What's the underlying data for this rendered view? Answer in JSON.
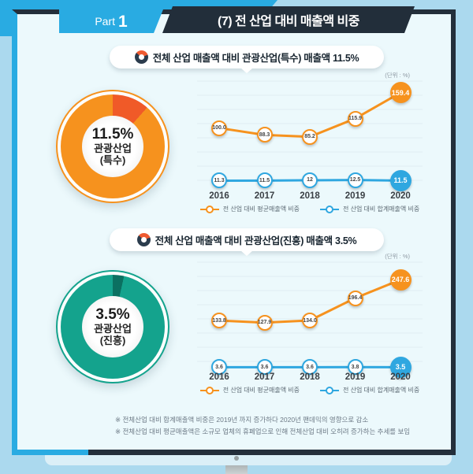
{
  "header": {
    "part_label": "Part",
    "part_number": "1",
    "title": "(7) 전 산업 대비 매출액 비중"
  },
  "colors": {
    "accent_blue": "#29abe2",
    "navy": "#222e3a",
    "orange": "#f6921e",
    "orange_slice": "#f05a28",
    "teal": "#14a38d",
    "teal_slice": "#0b7061",
    "line_blue": "#2fa7e0"
  },
  "sections": [
    {
      "title": "전체 산업 매출액 대비 관광산업(특수) 매출액 11.5%",
      "donut": {
        "percent": 11.5,
        "value_label": "11.5%",
        "line1": "관광산업",
        "line2": "(특수)",
        "color": "#f6921e",
        "slice_color": "#f05a28"
      }
    },
    {
      "title": "전체 산업 매출액 대비 관광산업(진흥) 매출액 3.5%",
      "donut": {
        "percent": 3.5,
        "value_label": "3.5%",
        "line1": "관광산업",
        "line2": "(진흥)",
        "color": "#14a38d",
        "slice_color": "#0b7061"
      }
    }
  ],
  "chart_data": [
    {
      "type": "line",
      "title": "전체 산업 매출액 대비 관광산업(특수) 매출액",
      "unit_label": "(단위 : %)",
      "categories": [
        "2016",
        "2017",
        "2018",
        "2019",
        "2020"
      ],
      "series": [
        {
          "name": "전 산업 대비 평균매출액 비중",
          "color": "#f6921e",
          "values": [
            100.0,
            88.3,
            85.2,
            115.9,
            159.4
          ],
          "labels": [
            "100.0",
            "88.3",
            "85.2",
            "115.9",
            "159.4"
          ]
        },
        {
          "name": "전 산업 대비 합계매출액 비중",
          "color": "#2fa7e0",
          "values": [
            11.3,
            11.5,
            12,
            12.5,
            11.5
          ],
          "labels": [
            "11.3",
            "11.5",
            "12",
            "12.5",
            "11.5"
          ]
        }
      ],
      "ylim": [
        0,
        175
      ],
      "grid": true,
      "legend_position": "bottom"
    },
    {
      "type": "line",
      "title": "전체 산업 매출액 대비 관광산업(진흥) 매출액",
      "unit_label": "(단위 : %)",
      "categories": [
        "2016",
        "2017",
        "2018",
        "2019",
        "2020"
      ],
      "series": [
        {
          "name": "전 산업 대비 평균매출액 비중",
          "color": "#f6921e",
          "values": [
            133.8,
            127.9,
            134.0,
            196.4,
            247.6
          ],
          "labels": [
            "133.8",
            "127.9",
            "134.0",
            "196.4",
            "247.6"
          ]
        },
        {
          "name": "전 산업 대비 합계매출액 비중",
          "color": "#2fa7e0",
          "values": [
            3.6,
            3.6,
            3.6,
            3.8,
            3.5
          ],
          "labels": [
            "3.6",
            "3.6",
            "3.6",
            "3.8",
            "3.5"
          ]
        }
      ],
      "ylim": [
        0,
        290
      ],
      "grid": true,
      "legend_position": "bottom"
    }
  ],
  "footnotes": [
    "※ 전체산업 대비 합계매출액 비중은 2019년 까지 증가하다 2020년 팬데믹의 영향으로 감소",
    "※ 전체산업 대비 평균매출액은 소규모 업체의 휴폐업으로 인해 전체산업 대비 오히려 증가하는 추세를 보임"
  ]
}
